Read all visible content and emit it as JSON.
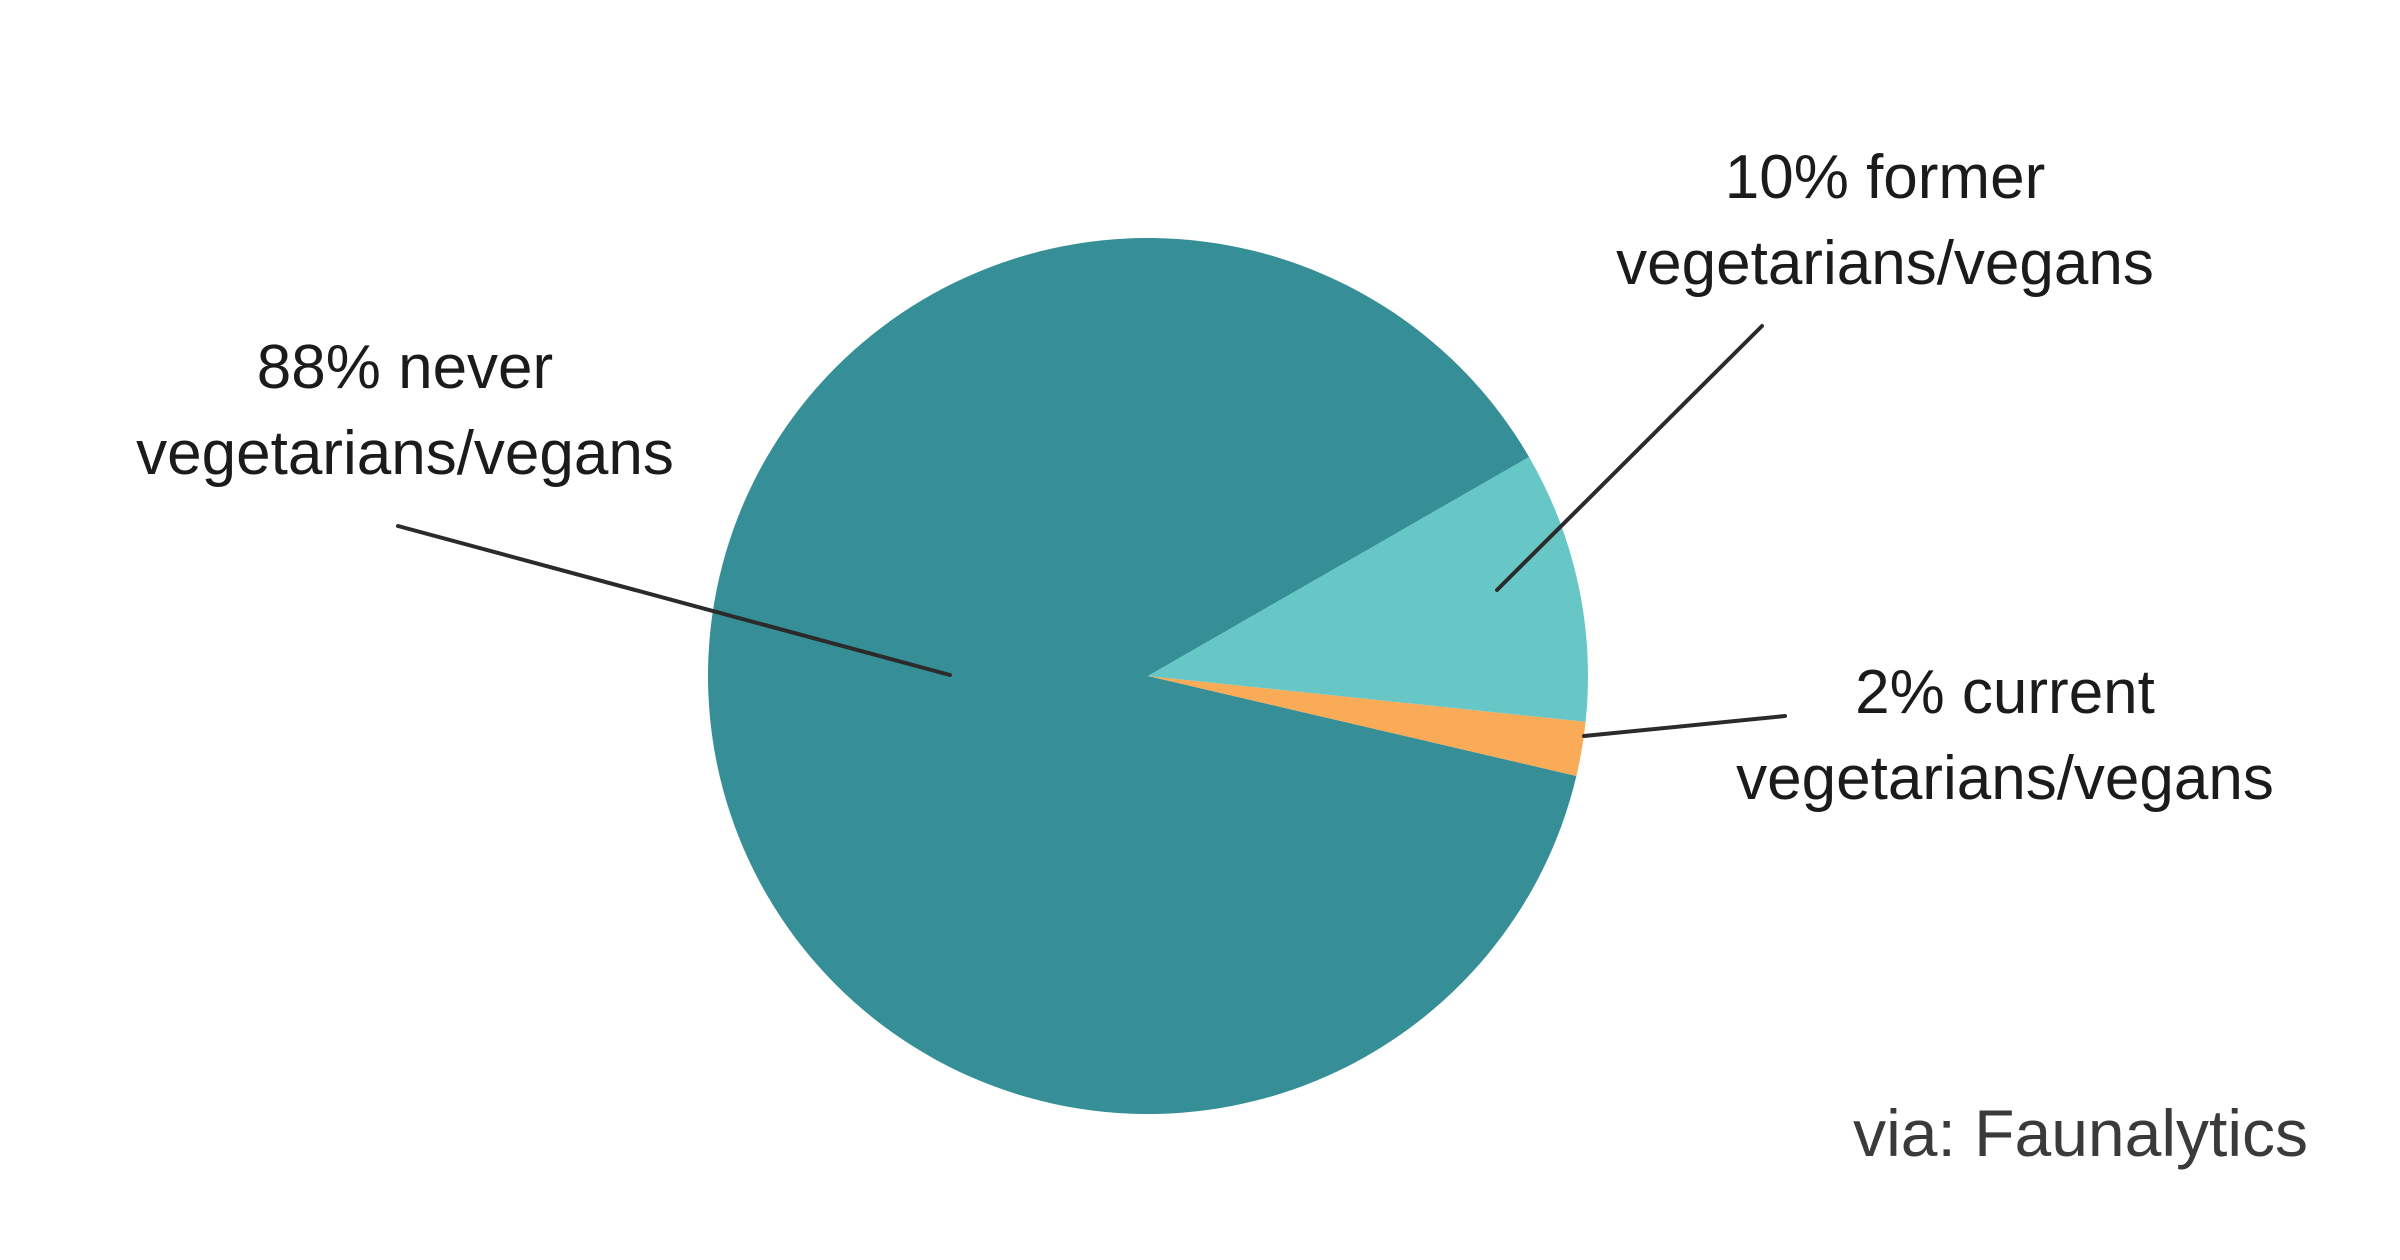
{
  "chart_data": {
    "type": "pie",
    "slices": [
      {
        "name": "never vegetarians/vegans",
        "value": 88,
        "color": "#368f96"
      },
      {
        "name": "former vegetarians/vegans",
        "value": 10,
        "color": "#66c7c6"
      },
      {
        "name": "current vegetarians/vegans",
        "value": 2,
        "color": "#f9ab58"
      }
    ],
    "labels": {
      "never": {
        "line1": "88% never",
        "line2": "vegetarians/vegans"
      },
      "former": {
        "line1": "10% former",
        "line2": "vegetarians/vegans"
      },
      "current": {
        "line1": "2% current",
        "line2": "vegetarians/vegans"
      }
    },
    "source": "via: Faunalytics",
    "leader_line_color": "#2b2b2b"
  }
}
